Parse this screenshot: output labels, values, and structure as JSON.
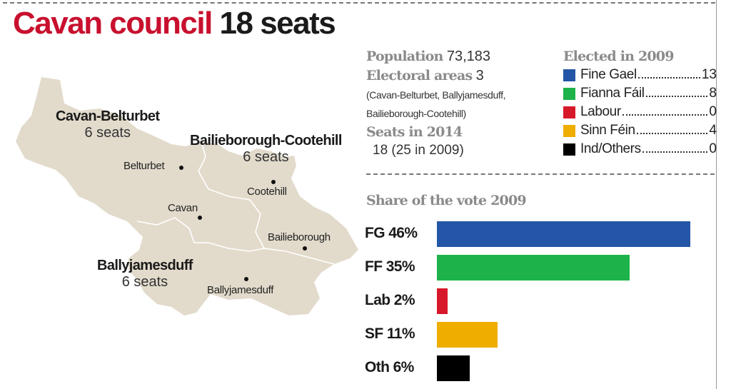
{
  "headline": {
    "title_red": "Cavan council",
    "title_black": "18 seats"
  },
  "map": {
    "areas": [
      {
        "name": "Cavan-Belturbet",
        "seats": "6 seats"
      },
      {
        "name": "Bailieborough-Cootehill",
        "seats": "6 seats"
      },
      {
        "name": "Ballyjamesduff",
        "seats": "6 seats"
      }
    ],
    "towns": [
      "Belturbet",
      "Cootehill",
      "Cavan",
      "Bailieborough",
      "Ballyjamesduff"
    ],
    "fill_color": "#e2dbcc"
  },
  "info": {
    "population_label": "Population",
    "population_value": "73,183",
    "areas_label": "Electoral areas",
    "areas_value": "3",
    "areas_list_1": "(Cavan-Belturbet, Ballyjamesduff,",
    "areas_list_2": "Bailieborough-Cootehill)",
    "seats_label": "Seats in 2014",
    "seats_value": "18 (25 in 2009)"
  },
  "legend": {
    "title": "Elected in 2009",
    "items": [
      {
        "party": "Fine Gael",
        "seats": "13",
        "color": "#2356a6"
      },
      {
        "party": "Fianna Fáil",
        "seats": "8",
        "color": "#1db34a"
      },
      {
        "party": "Labour",
        "seats": "0",
        "color": "#d7182a"
      },
      {
        "party": "Sinn Féin",
        "seats": "4",
        "color": "#efad00"
      },
      {
        "party": "Ind/Others",
        "seats": "0",
        "color": "#000000"
      }
    ]
  },
  "chart_data": {
    "type": "bar",
    "title": "Share of the vote 2009",
    "orientation": "horizontal",
    "categories": [
      "FG",
      "FF",
      "Lab",
      "SF",
      "Oth"
    ],
    "values": [
      46,
      35,
      2,
      11,
      6
    ],
    "labels": [
      "FG 46%",
      "FF 35%",
      "Lab 2%",
      "SF 11%",
      "Oth 6%"
    ],
    "colors": [
      "#2356a6",
      "#1db34a",
      "#d7182a",
      "#efad00",
      "#000000"
    ],
    "unit": "%"
  }
}
